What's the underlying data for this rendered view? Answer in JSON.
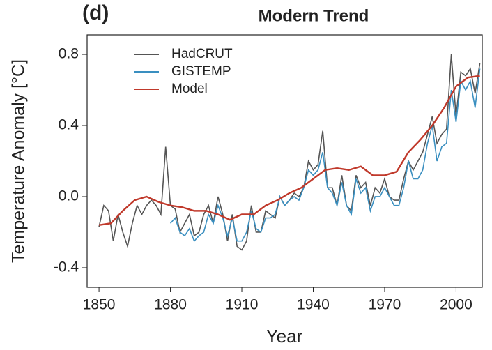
{
  "chart_data": {
    "type": "line",
    "title": "Modern Trend",
    "panel_label": "(d)",
    "x_label": "Year",
    "y_label": "Temperature Anomaly [°C]",
    "xlim": [
      1845,
      2011
    ],
    "xticks": [
      1850,
      1880,
      1910,
      1940,
      1970,
      2000
    ],
    "ylim": [
      -0.51,
      0.91
    ],
    "yticks": [
      -0.4,
      {
        "value": 0,
        "label": "0.0"
      },
      0.4,
      0.8
    ],
    "legend": "upper left",
    "series": [
      {
        "name": "HadCRUT",
        "color": "#555555",
        "x": [
          1850,
          1852,
          1854,
          1856,
          1858,
          1860,
          1862,
          1864,
          1866,
          1868,
          1870,
          1872,
          1874,
          1876,
          1878,
          1880,
          1882,
          1884,
          1886,
          1888,
          1890,
          1892,
          1894,
          1896,
          1898,
          1900,
          1902,
          1904,
          1906,
          1908,
          1910,
          1912,
          1914,
          1916,
          1918,
          1920,
          1922,
          1924,
          1926,
          1928,
          1930,
          1932,
          1934,
          1936,
          1938,
          1940,
          1942,
          1944,
          1946,
          1948,
          1950,
          1952,
          1954,
          1956,
          1958,
          1960,
          1962,
          1964,
          1966,
          1968,
          1970,
          1972,
          1974,
          1976,
          1978,
          1980,
          1982,
          1984,
          1986,
          1988,
          1990,
          1992,
          1994,
          1996,
          1998,
          2000,
          2002,
          2004,
          2006,
          2008,
          2010
        ],
        "values": [
          -0.17,
          -0.05,
          -0.08,
          -0.25,
          -0.1,
          -0.2,
          -0.28,
          -0.15,
          -0.05,
          -0.1,
          -0.05,
          -0.02,
          -0.05,
          -0.1,
          0.28,
          -0.05,
          -0.07,
          -0.2,
          -0.15,
          -0.1,
          -0.22,
          -0.2,
          -0.1,
          -0.05,
          -0.15,
          0.0,
          -0.1,
          -0.25,
          -0.1,
          -0.28,
          -0.3,
          -0.25,
          -0.05,
          -0.2,
          -0.2,
          -0.08,
          -0.1,
          -0.12,
          0.0,
          -0.05,
          -0.02,
          0.02,
          0.0,
          0.05,
          0.2,
          0.15,
          0.18,
          0.37,
          0.05,
          0.05,
          -0.05,
          0.12,
          -0.05,
          -0.08,
          0.12,
          0.05,
          0.08,
          -0.05,
          0.05,
          0.02,
          0.1,
          0.0,
          -0.02,
          -0.02,
          0.1,
          0.2,
          0.15,
          0.2,
          0.25,
          0.35,
          0.45,
          0.3,
          0.35,
          0.38,
          0.8,
          0.45,
          0.7,
          0.68,
          0.72,
          0.58,
          0.75
        ]
      },
      {
        "name": "GISTEMP",
        "color": "#3a8fc0",
        "x": [
          1880,
          1882,
          1884,
          1886,
          1888,
          1890,
          1892,
          1894,
          1896,
          1898,
          1900,
          1902,
          1904,
          1906,
          1908,
          1910,
          1912,
          1914,
          1916,
          1918,
          1920,
          1922,
          1924,
          1926,
          1928,
          1930,
          1932,
          1934,
          1936,
          1938,
          1940,
          1942,
          1944,
          1946,
          1948,
          1950,
          1952,
          1954,
          1956,
          1958,
          1960,
          1962,
          1964,
          1966,
          1968,
          1970,
          1972,
          1974,
          1976,
          1978,
          1980,
          1982,
          1984,
          1986,
          1988,
          1990,
          1992,
          1994,
          1996,
          1998,
          2000,
          2002,
          2004,
          2006,
          2008,
          2010
        ],
        "values": [
          -0.15,
          -0.12,
          -0.2,
          -0.22,
          -0.18,
          -0.25,
          -0.22,
          -0.2,
          -0.1,
          -0.15,
          -0.05,
          -0.12,
          -0.22,
          -0.12,
          -0.25,
          -0.25,
          -0.2,
          -0.08,
          -0.18,
          -0.2,
          -0.12,
          -0.12,
          -0.1,
          0.0,
          -0.05,
          -0.02,
          0.0,
          -0.02,
          0.05,
          0.15,
          0.12,
          0.15,
          0.25,
          0.05,
          0.02,
          -0.05,
          0.08,
          -0.05,
          -0.1,
          0.1,
          0.02,
          0.05,
          -0.08,
          0.0,
          0.0,
          0.05,
          0.0,
          -0.05,
          -0.05,
          0.05,
          0.2,
          0.1,
          0.1,
          0.15,
          0.3,
          0.4,
          0.2,
          0.28,
          0.3,
          0.6,
          0.42,
          0.65,
          0.6,
          0.65,
          0.5,
          0.72
        ]
      },
      {
        "name": "Model",
        "color": "#c0392b",
        "x": [
          1850,
          1855,
          1860,
          1865,
          1870,
          1875,
          1880,
          1885,
          1890,
          1895,
          1900,
          1905,
          1910,
          1915,
          1920,
          1925,
          1930,
          1935,
          1940,
          1945,
          1950,
          1955,
          1960,
          1965,
          1970,
          1975,
          1980,
          1985,
          1990,
          1995,
          2000,
          2005,
          2010
        ],
        "values": [
          -0.16,
          -0.15,
          -0.08,
          -0.02,
          0.0,
          -0.03,
          -0.05,
          -0.06,
          -0.08,
          -0.08,
          -0.1,
          -0.13,
          -0.1,
          -0.1,
          -0.05,
          -0.02,
          0.02,
          0.05,
          0.1,
          0.15,
          0.16,
          0.15,
          0.17,
          0.12,
          0.12,
          0.14,
          0.25,
          0.32,
          0.4,
          0.5,
          0.62,
          0.67,
          0.68
        ]
      }
    ]
  }
}
